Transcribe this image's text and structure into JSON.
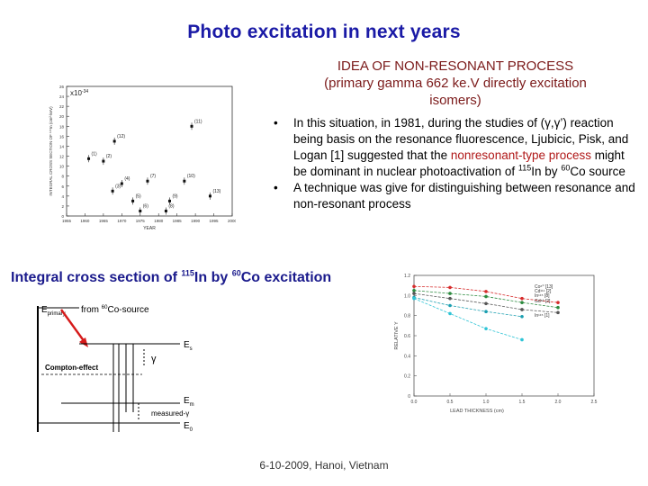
{
  "title": "Photo excitation in next years",
  "idea": {
    "line1": "IDEA OF NON-RESONANT PROCESS",
    "line2": "(primary gamma 662 ke.V directly excitation",
    "line3": "isomers)"
  },
  "bullets": {
    "b1_part1": "In this situation, in 1981, during the studies of (γ,γ’) reaction being basis on the resonance fluorescence, Ljubicic, Pisk, and Logan [1] suggested that the",
    "b1_highlight": "nonresonant-type process",
    "b1_part2": " might be dominant in nuclear photoactivation of ",
    "b1_iso1": "115",
    "b1_el1": "In by ",
    "b1_iso2": "60",
    "b1_el2": "Co source",
    "b2": "A technique was give for distinguishing between resonance and non-resonant process",
    "marker": "•"
  },
  "integral": {
    "prefix": "Integral cross section of ",
    "iso1": "115",
    "el1": "In by ",
    "iso2": "60",
    "el2": "Co excitation"
  },
  "level_diagram": {
    "e_primary": "E",
    "e_primary_sub": "primary",
    "from_source": "from",
    "source_iso": "60",
    "source_el": "Co-source",
    "es": "E",
    "es_sub": "s",
    "gamma": "γ",
    "compton": "Compton-effect",
    "em": "E",
    "em_sub": "m",
    "measured": "measured-γ",
    "e0": "E",
    "e0_sub": "0"
  },
  "left_chart": {
    "ylabel": "INTEGRAL CROSS SECTION OF ¹¹⁵In (cm²·keV)",
    "xlabel": "YEAR",
    "multiplier": "x10",
    "multiplier_exp": "-34",
    "x_ticks": [
      "1955",
      "1960",
      "1965",
      "1970",
      "1975",
      "1980",
      "1985",
      "1990",
      "1995",
      "2000"
    ],
    "y_ticks": [
      "0",
      "2",
      "4",
      "6",
      "8",
      "10",
      "12",
      "14",
      "16",
      "18",
      "20",
      "22",
      "24",
      "26"
    ],
    "chart_data": {
      "type": "scatter",
      "title": "",
      "xlabel": "YEAR",
      "ylabel": "INTEGRAL CROSS SECTION OF 115In",
      "xlim": [
        1955,
        2000
      ],
      "ylim": [
        0,
        26
      ],
      "points": [
        {
          "label": "(1)",
          "x": 1961,
          "y": 11.5
        },
        {
          "label": "(2)",
          "x": 1965,
          "y": 11
        },
        {
          "label": "(3)",
          "x": 1967.5,
          "y": 5
        },
        {
          "label": "(4)",
          "x": 1970,
          "y": 6.5
        },
        {
          "label": "(5)",
          "x": 1973,
          "y": 3
        },
        {
          "label": "(6)",
          "x": 1975,
          "y": 1
        },
        {
          "label": "(7)",
          "x": 1977,
          "y": 7
        },
        {
          "label": "(8)",
          "x": 1982,
          "y": 1
        },
        {
          "label": "(9)",
          "x": 1983,
          "y": 3
        },
        {
          "label": "(10)",
          "x": 1987,
          "y": 7
        },
        {
          "label": "(11)",
          "x": 1989,
          "y": 18
        },
        {
          "label": "(12)",
          "x": 1968,
          "y": 15
        },
        {
          "label": "(13)",
          "x": 1994,
          "y": 4
        }
      ]
    }
  },
  "right_chart": {
    "ylabel": "RELATIVE Y",
    "xlabel": "LEAD THICKNESS (cm)",
    "x_ticks": [
      "0.0",
      "0.5",
      "1.0",
      "1.5",
      "2.0",
      "2.5"
    ],
    "y_ticks": [
      "0",
      "0.2",
      "0.4",
      "0.6",
      "0.8",
      "1.0",
      "1.2"
    ],
    "legend": [
      "Co⁶⁰ [13]",
      "Cd¹¹¹ [2]",
      "In¹¹⁵ [8]",
      "Gd⁸² [2]",
      "In¹¹⁵ [1]"
    ],
    "chart_data": {
      "type": "line",
      "xlabel": "LEAD THICKNESS (cm)",
      "ylabel": "RELATIVE Y",
      "xlim": [
        0,
        2.5
      ],
      "ylim": [
        0,
        1.2
      ],
      "x": [
        0.0,
        0.5,
        1.0,
        1.5,
        2.0
      ],
      "series": [
        {
          "name": "Co60 [13]",
          "color": "#d62b2b",
          "values": [
            1.09,
            1.08,
            1.04,
            0.97,
            0.93
          ]
        },
        {
          "name": "Cd111 [2]",
          "color": "#2b8a3e",
          "values": [
            1.05,
            1.02,
            0.99,
            0.93,
            0.88
          ]
        },
        {
          "name": "In115 [8]",
          "color": "#555555",
          "values": [
            1.02,
            0.97,
            0.92,
            0.86,
            0.83
          ]
        },
        {
          "name": "Gd82 [2]",
          "color": "#1b9fb0",
          "values": [
            0.98,
            0.9,
            0.84,
            0.79,
            null
          ]
        },
        {
          "name": "In115 [1]",
          "color": "#2ec4d6",
          "values": [
            0.97,
            0.82,
            0.67,
            0.56,
            null
          ]
        }
      ]
    }
  },
  "footer": "6-10-2009, Hanoi, Vietnam",
  "colors": {
    "title": "#1a1aa6",
    "idea": "#7b1a1a",
    "highlight": "#b01818",
    "arrow": "#d61a1a"
  }
}
